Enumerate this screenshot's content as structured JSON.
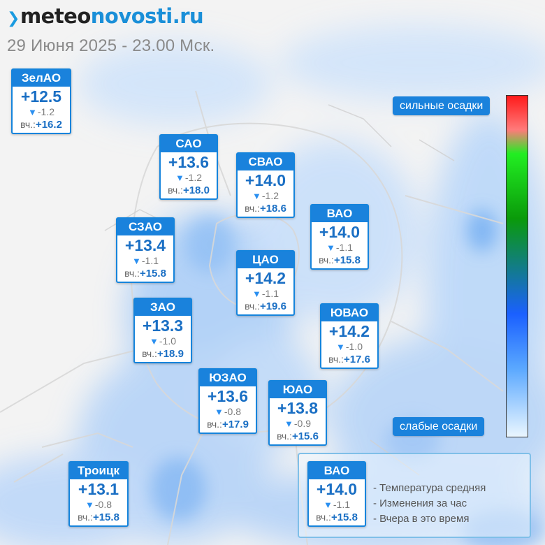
{
  "header": {
    "brand_part1": "meteo",
    "brand_part2": "novosti.ru",
    "date_line": "29 Июня 2025 - 23.00 Мск."
  },
  "districts": [
    {
      "name": "ЗелАО",
      "temp": "+12.5",
      "delta": "-1.2",
      "yest_label": "вч.:",
      "yest": "+16.2"
    },
    {
      "name": "САО",
      "temp": "+13.6",
      "delta": "-1.2",
      "yest_label": "вч.:",
      "yest": "+18.0"
    },
    {
      "name": "СВАО",
      "temp": "+14.0",
      "delta": "-1.2",
      "yest_label": "вч.:",
      "yest": "+18.6"
    },
    {
      "name": "ВАО",
      "temp": "+14.0",
      "delta": "-1.1",
      "yest_label": "вч.:",
      "yest": "+15.8"
    },
    {
      "name": "СЗАО",
      "temp": "+13.4",
      "delta": "-1.1",
      "yest_label": "вч.:",
      "yest": "+15.8"
    },
    {
      "name": "ЦАО",
      "temp": "+14.2",
      "delta": "-1.1",
      "yest_label": "вч.:",
      "yest": "+19.6"
    },
    {
      "name": "ЗАО",
      "temp": "+13.3",
      "delta": "-1.0",
      "yest_label": "вч.:",
      "yest": "+18.9"
    },
    {
      "name": "ЮВАО",
      "temp": "+14.2",
      "delta": "-1.0",
      "yest_label": "вч.:",
      "yest": "+17.6"
    },
    {
      "name": "ЮЗАО",
      "temp": "+13.6",
      "delta": "-0.8",
      "yest_label": "вч.:",
      "yest": "+17.9"
    },
    {
      "name": "ЮАО",
      "temp": "+13.8",
      "delta": "-0.9",
      "yest_label": "вч.:",
      "yest": "+15.6"
    },
    {
      "name": "Троицк",
      "temp": "+13.1",
      "delta": "-0.8",
      "yest_label": "вч.:",
      "yest": "+15.8"
    }
  ],
  "precip_scale": {
    "top_label": "сильные осадки",
    "bottom_label": "слабые осадки",
    "colors": [
      "#ff1a1a",
      "#22ee22",
      "#1a60ff",
      "#eaf6ff"
    ]
  },
  "legend": {
    "sample": {
      "name": "ВАО",
      "temp": "+14.0",
      "delta": "-1.1",
      "yest_label": "вч.:",
      "yest": "+15.8"
    },
    "line1": "- Температура средняя",
    "line2": "- Изменения за час",
    "line3": "- Вчера в это время"
  }
}
